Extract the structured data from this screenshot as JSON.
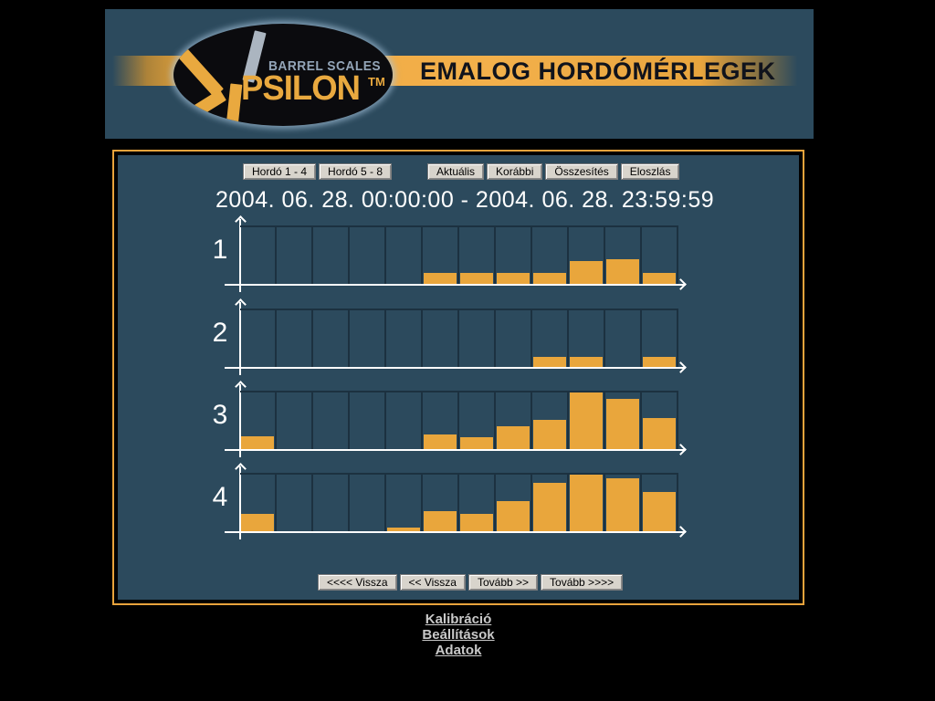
{
  "header": {
    "brand_top": "BARREL SCALES",
    "brand_main": "PSILON",
    "brand_tm": "TM",
    "title": "EMALOG HORDÓMÉRLEGEK"
  },
  "toolbar": {
    "barrel_group": [
      {
        "label": "Hordó 1 - 4"
      },
      {
        "label": "Hordó 5 - 8"
      }
    ],
    "view_group": [
      {
        "label": "Aktuális"
      },
      {
        "label": "Korábbi"
      },
      {
        "label": "Összesítés"
      },
      {
        "label": "Eloszlás"
      }
    ]
  },
  "date_range": "2004. 06. 28. 00:00:00 - 2004. 06. 28. 23:59:59",
  "chart_data": {
    "type": "bar",
    "title": "2004. 06. 28. 00:00:00 - 2004. 06. 28. 23:59:59",
    "x_bins": 12,
    "x_ticklabels": [],
    "ylim": [
      0,
      1
    ],
    "legend": "none",
    "grid": true,
    "bar_color": "#E9A63C",
    "series": [
      {
        "name": "1",
        "values": [
          0,
          0,
          0,
          0,
          0,
          0.2,
          0.2,
          0.2,
          0.2,
          0.4,
          0.43,
          0.2
        ]
      },
      {
        "name": "2",
        "values": [
          0,
          0,
          0,
          0,
          0,
          0,
          0,
          0,
          0.18,
          0.18,
          0,
          0.18
        ]
      },
      {
        "name": "3",
        "values": [
          0.22,
          0,
          0,
          0,
          0,
          0.26,
          0.21,
          0.4,
          0.52,
          1.0,
          0.88,
          0.55
        ]
      },
      {
        "name": "4",
        "values": [
          0.31,
          0,
          0,
          0,
          0.06,
          0.36,
          0.3,
          0.53,
          0.85,
          1.0,
          0.94,
          0.7
        ]
      }
    ]
  },
  "nav": {
    "buttons": [
      "<<<< Vissza",
      "<< Vissza",
      "Tovább >>",
      "Tovább >>>>"
    ]
  },
  "footer_links": [
    "Kalibráció",
    "Beállítások",
    "Adatok"
  ],
  "colors": {
    "page_bg": "#000000",
    "panel_bg": "#2C4A5D",
    "accent_gold": "#E8A33C",
    "bar_orange": "#E9A63C",
    "grid_line": "#1C3140",
    "axis_white": "#FFFFFF"
  }
}
